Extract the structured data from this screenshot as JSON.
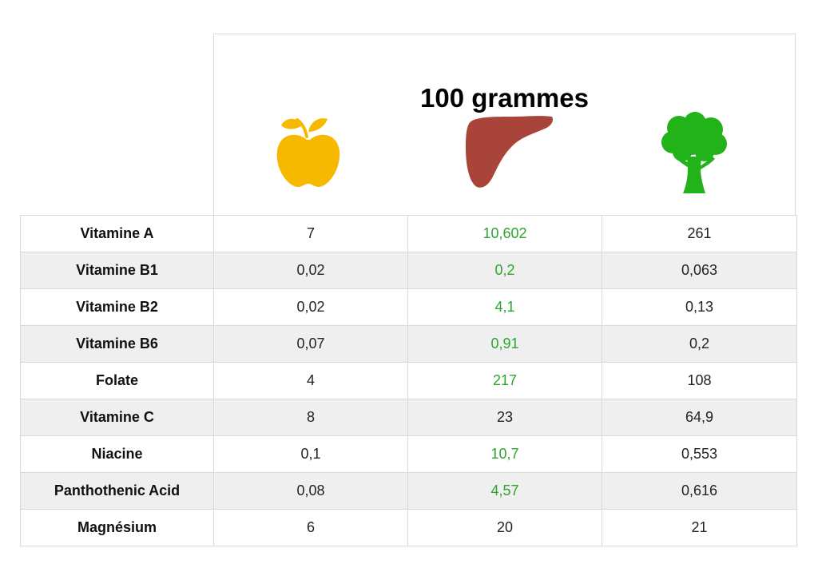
{
  "header": {
    "title": "100 grammes"
  },
  "icons": {
    "col1": "apple-icon",
    "col2": "liver-icon",
    "col3": "broccoli-icon"
  },
  "colors": {
    "apple": "#f7b900",
    "liver": "#a8443a",
    "broccoli": "#22b21a",
    "highlight": "#2ea52e",
    "shade": "#efefef"
  },
  "rows": [
    {
      "label": "Vitamine A",
      "values": [
        "7",
        "10,602",
        "261"
      ],
      "highlight": 1
    },
    {
      "label": "Vitamine B1",
      "values": [
        "0,02",
        "0,2",
        "0,063"
      ],
      "highlight": 1
    },
    {
      "label": "Vitamine B2",
      "values": [
        "0,02",
        "4,1",
        "0,13"
      ],
      "highlight": 1
    },
    {
      "label": "Vitamine B6",
      "values": [
        "0,07",
        "0,91",
        "0,2"
      ],
      "highlight": 1
    },
    {
      "label": "Folate",
      "values": [
        "4",
        "217",
        "108"
      ],
      "highlight": 1
    },
    {
      "label": "Vitamine C",
      "values": [
        "8",
        "23",
        "64,9"
      ],
      "highlight": -1
    },
    {
      "label": "Niacine",
      "values": [
        "0,1",
        "10,7",
        "0,553"
      ],
      "highlight": 1
    },
    {
      "label": "Panthothenic Acid",
      "values": [
        "0,08",
        "4,57",
        "0,616"
      ],
      "highlight": 1
    },
    {
      "label": "Magnésium",
      "values": [
        "6",
        "20",
        "21"
      ],
      "highlight": -1
    }
  ]
}
